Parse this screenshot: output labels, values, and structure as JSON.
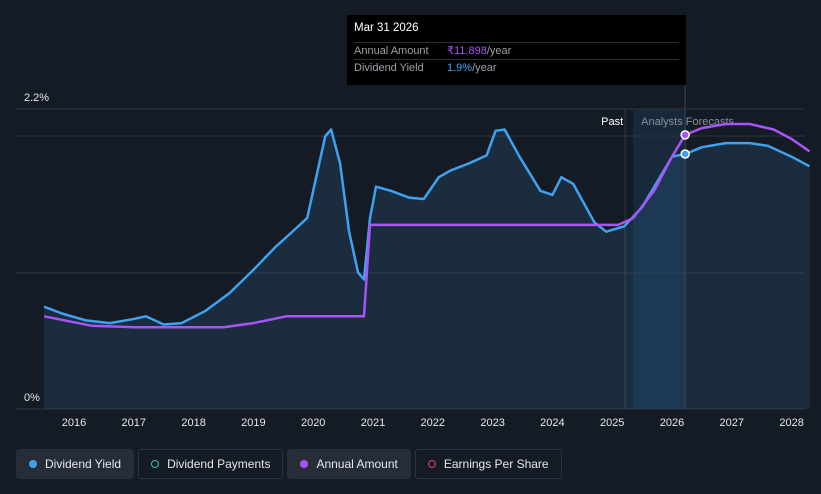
{
  "chart_data": {
    "type": "line",
    "x_ticks": [
      "2016",
      "2017",
      "2018",
      "2019",
      "2020",
      "2021",
      "2022",
      "2023",
      "2024",
      "2025",
      "2026",
      "2027",
      "2028"
    ],
    "y_ticks": [
      "2.2%",
      "0%"
    ],
    "ylim": [
      0,
      2.2
    ],
    "xlim": [
      2015.3,
      2028.3
    ],
    "region_labels": {
      "past": "Past",
      "forecast": "Analysts Forecasts"
    },
    "forecast_start": 2025.35,
    "series": [
      {
        "name": "Dividend Yield",
        "color": "#3ea2f0",
        "filled": true,
        "points": [
          [
            2015.5,
            0.75
          ],
          [
            2015.8,
            0.7
          ],
          [
            2016.2,
            0.65
          ],
          [
            2016.6,
            0.63
          ],
          [
            2017.0,
            0.66
          ],
          [
            2017.2,
            0.68
          ],
          [
            2017.5,
            0.62
          ],
          [
            2017.8,
            0.63
          ],
          [
            2018.2,
            0.72
          ],
          [
            2018.6,
            0.85
          ],
          [
            2019.0,
            1.02
          ],
          [
            2019.35,
            1.18
          ],
          [
            2019.6,
            1.28
          ],
          [
            2019.9,
            1.4
          ],
          [
            2020.05,
            1.7
          ],
          [
            2020.2,
            2.0
          ],
          [
            2020.3,
            2.05
          ],
          [
            2020.45,
            1.8
          ],
          [
            2020.6,
            1.3
          ],
          [
            2020.75,
            1.0
          ],
          [
            2020.85,
            0.95
          ],
          [
            2020.95,
            1.4
          ],
          [
            2021.05,
            1.63
          ],
          [
            2021.3,
            1.6
          ],
          [
            2021.6,
            1.55
          ],
          [
            2021.85,
            1.54
          ],
          [
            2022.1,
            1.7
          ],
          [
            2022.3,
            1.75
          ],
          [
            2022.6,
            1.8
          ],
          [
            2022.9,
            1.86
          ],
          [
            2023.05,
            2.04
          ],
          [
            2023.2,
            2.05
          ],
          [
            2023.45,
            1.85
          ],
          [
            2023.8,
            1.6
          ],
          [
            2024.0,
            1.57
          ],
          [
            2024.15,
            1.7
          ],
          [
            2024.35,
            1.65
          ],
          [
            2024.7,
            1.37
          ],
          [
            2024.9,
            1.3
          ],
          [
            2025.2,
            1.34
          ],
          [
            2025.5,
            1.48
          ],
          [
            2025.8,
            1.7
          ],
          [
            2026.0,
            1.85
          ],
          [
            2026.22,
            1.87
          ],
          [
            2026.5,
            1.92
          ],
          [
            2026.9,
            1.95
          ],
          [
            2027.3,
            1.95
          ],
          [
            2027.6,
            1.93
          ],
          [
            2028.0,
            1.85
          ],
          [
            2028.3,
            1.78
          ]
        ]
      },
      {
        "name": "Annual Amount",
        "color": "#a855f7",
        "filled": false,
        "points": [
          [
            2015.5,
            0.68
          ],
          [
            2016.3,
            0.61
          ],
          [
            2017.0,
            0.6
          ],
          [
            2018.5,
            0.6
          ],
          [
            2019.0,
            0.63
          ],
          [
            2019.55,
            0.68
          ],
          [
            2020.85,
            0.68
          ],
          [
            2020.95,
            1.35
          ],
          [
            2025.1,
            1.35
          ],
          [
            2025.35,
            1.4
          ],
          [
            2025.7,
            1.6
          ],
          [
            2026.0,
            1.85
          ],
          [
            2026.22,
            2.01
          ],
          [
            2026.5,
            2.06
          ],
          [
            2026.9,
            2.09
          ],
          [
            2027.3,
            2.09
          ],
          [
            2027.7,
            2.05
          ],
          [
            2028.0,
            1.98
          ],
          [
            2028.3,
            1.89
          ]
        ]
      }
    ],
    "highlight": {
      "x": 2026.22,
      "yield": 1.87,
      "amount": 2.01
    }
  },
  "tooltip": {
    "title": "Mar 31 2026",
    "rows": [
      {
        "key": "Annual Amount",
        "value": "₹11.898",
        "unit": "/year"
      },
      {
        "key": "Dividend Yield",
        "value": "1.9%",
        "unit": "/year"
      }
    ]
  },
  "legend": [
    {
      "label": "Dividend Yield",
      "color": "#3ea2f0",
      "style": "filled",
      "active": true
    },
    {
      "label": "Dividend Payments",
      "color": "#2ec4b6",
      "style": "hollow",
      "active": false
    },
    {
      "label": "Annual Amount",
      "color": "#a855f7",
      "style": "filled",
      "active": true
    },
    {
      "label": "Earnings Per Share",
      "color": "#e0407b",
      "style": "hollow",
      "active": false
    }
  ],
  "colors": {
    "background": "#151b24",
    "grid": "#2c3440",
    "forecast_band": "#1c3550",
    "region_past": "#ffffff",
    "region_forecast": "#8a919a"
  }
}
